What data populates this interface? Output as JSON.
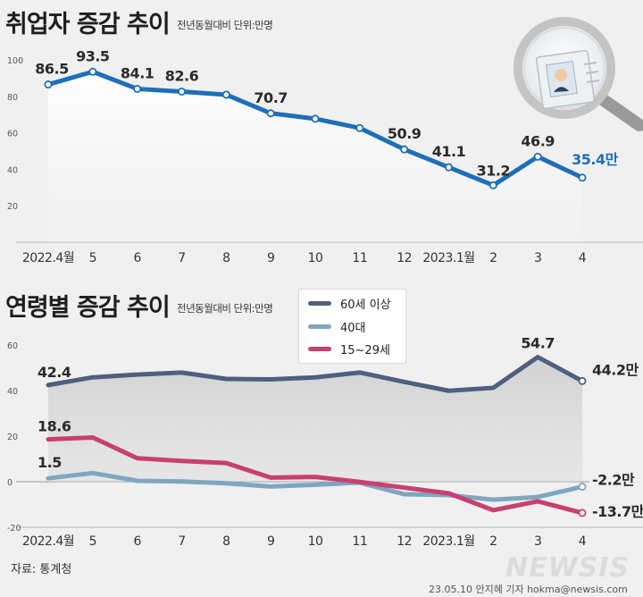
{
  "header": {
    "top_title": "취업자 증감 추이",
    "top_subtitle": "전년동월대비 단위:만명",
    "bottom_title": "연령별 증감 추이",
    "bottom_subtitle": "전년동월대비 단위:만명"
  },
  "colors": {
    "top_line": "#1d6fb8",
    "sixty_plus": "#4e5f80",
    "forties": "#7fa6c1",
    "young": "#c8406f"
  },
  "footer": {
    "source": "자료: 통계청",
    "credit": "23.05.10 안지혜 기자 hokma@newsis.com",
    "watermark": "NEWSIS"
  },
  "chart_data": [
    {
      "type": "area",
      "title": "취업자 증감 추이",
      "subtitle": "전년동월대비 단위:만명",
      "categories": [
        "2022.4월",
        "5",
        "6",
        "7",
        "8",
        "9",
        "10",
        "11",
        "12",
        "2023.1월",
        "2",
        "3",
        "4"
      ],
      "series": [
        {
          "name": "취업자 증감",
          "values": [
            86.5,
            93.5,
            84.1,
            82.6,
            80.9,
            70.7,
            67.7,
            62.6,
            50.9,
            41.1,
            31.2,
            46.9,
            35.4
          ]
        }
      ],
      "point_labels": [
        "86.5",
        "93.5",
        "84.1",
        "82.6",
        "",
        "70.7",
        "",
        "",
        "50.9",
        "41.1",
        "31.2",
        "46.9",
        "35.4"
      ],
      "last_label_unit": "만",
      "yticks": [
        "100",
        "80",
        "60",
        "40",
        "20"
      ],
      "ylim": [
        0,
        100
      ],
      "grid": false
    },
    {
      "type": "line",
      "title": "연령별 증감 추이",
      "subtitle": "전년동월대비 단위:만명",
      "categories": [
        "2022.4월",
        "5",
        "6",
        "7",
        "8",
        "9",
        "10",
        "11",
        "12",
        "2023.1월",
        "2",
        "3",
        "4"
      ],
      "series": [
        {
          "name": "60세 이상",
          "values": [
            42.4,
            45.8,
            47.0,
            47.9,
            45.1,
            44.9,
            45.8,
            47.9,
            43.8,
            39.9,
            41.2,
            54.7,
            44.2
          ],
          "labels": [
            "42.4",
            "",
            "",
            "",
            "",
            "",
            "",
            "",
            "",
            "",
            "",
            "54.7",
            "44.2"
          ],
          "last_unit": "만"
        },
        {
          "name": "40대",
          "values": [
            1.5,
            3.8,
            0.4,
            0.1,
            -0.7,
            -2.1,
            -1.3,
            -0.4,
            -5.5,
            -5.9,
            -7.9,
            -6.7,
            -2.2
          ],
          "labels": [
            "1.5",
            "",
            "",
            "",
            "",
            "",
            "",
            "",
            "",
            "",
            "",
            "",
            "-2.2"
          ],
          "last_unit": "만"
        },
        {
          "name": "15~29세",
          "values": [
            18.6,
            19.4,
            10.3,
            9.1,
            8.2,
            1.8,
            2.1,
            -0.1,
            -2.6,
            -5.1,
            -12.5,
            -8.6,
            -13.7
          ],
          "labels": [
            "18.6",
            "",
            "",
            "",
            "",
            "",
            "",
            "",
            "",
            "",
            "",
            "",
            "-13.7"
          ],
          "last_unit": "만"
        }
      ],
      "legend": [
        "60세 이상",
        "40대",
        "15~29세"
      ],
      "legend_position": "top-right",
      "yticks": [
        "60",
        "40",
        "20",
        "0",
        "-20"
      ],
      "ylim": [
        -20,
        60
      ],
      "grid": false
    }
  ]
}
